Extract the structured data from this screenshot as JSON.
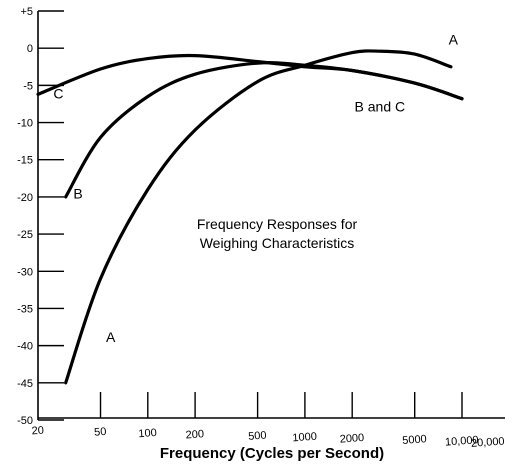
{
  "chart_data": {
    "type": "line",
    "title_lines": [
      "Frequency Responses for",
      "Weighing Characteristics"
    ],
    "xlabel": "Frequency (Cycles per Second)",
    "ylabel": "",
    "x_scale": "log",
    "x_ticks": [
      {
        "value": 20,
        "label": "20"
      },
      {
        "value": 50,
        "label": "50"
      },
      {
        "value": 100,
        "label": "100"
      },
      {
        "value": 200,
        "label": "200"
      },
      {
        "value": 500,
        "label": "500"
      },
      {
        "value": 1000,
        "label": "1000"
      },
      {
        "value": 2000,
        "label": "2000"
      },
      {
        "value": 5000,
        "label": "5000"
      },
      {
        "value": 10000,
        "label": "10,000"
      },
      {
        "value": 20000,
        "label": "20,000"
      }
    ],
    "y_ticks": [
      {
        "value": 5,
        "label": "+5"
      },
      {
        "value": 0,
        "label": "0"
      },
      {
        "value": -5,
        "label": "-5"
      },
      {
        "value": -10,
        "label": "-10"
      },
      {
        "value": -15,
        "label": "-15"
      },
      {
        "value": -20,
        "label": "-20"
      },
      {
        "value": -25,
        "label": "-25"
      },
      {
        "value": -30,
        "label": "-30"
      },
      {
        "value": -35,
        "label": "-35"
      },
      {
        "value": -40,
        "label": "-40"
      },
      {
        "value": -45,
        "label": "-45"
      },
      {
        "value": -50,
        "label": "-50"
      }
    ],
    "ylim": [
      -50,
      5
    ],
    "grid": false,
    "series": [
      {
        "name": "A",
        "x": [
          30,
          50,
          100,
          200,
          500,
          1000,
          2000,
          3000,
          5000,
          8500
        ],
        "y": [
          -45,
          -31,
          -19,
          -11,
          -4.5,
          -2.3,
          -0.6,
          -0.4,
          -0.8,
          -2.5
        ]
      },
      {
        "name": "B",
        "x": [
          30,
          50,
          100,
          200,
          500,
          1000,
          2000,
          5000,
          10000
        ],
        "y": [
          -20,
          -12,
          -6.5,
          -3.5,
          -2,
          -2.3,
          -3,
          -4.7,
          -6.8
        ]
      },
      {
        "name": "C",
        "x": [
          20,
          50,
          100,
          200,
          500,
          1000,
          2000,
          5000,
          10000
        ],
        "y": [
          -6.2,
          -2.8,
          -1.4,
          -1,
          -1.8,
          -2.5,
          -3,
          -4.7,
          -6.8
        ]
      }
    ],
    "annotations": [
      {
        "text": "A",
        "x": 8800,
        "y": 0.5
      },
      {
        "text": "B and C",
        "x": 3000,
        "y": -8.5
      },
      {
        "text": "C",
        "x": 27,
        "y": -6.8
      },
      {
        "text": "B",
        "x": 36,
        "y": -20.2
      },
      {
        "text": "A",
        "x": 58,
        "y": -39.5
      }
    ]
  }
}
